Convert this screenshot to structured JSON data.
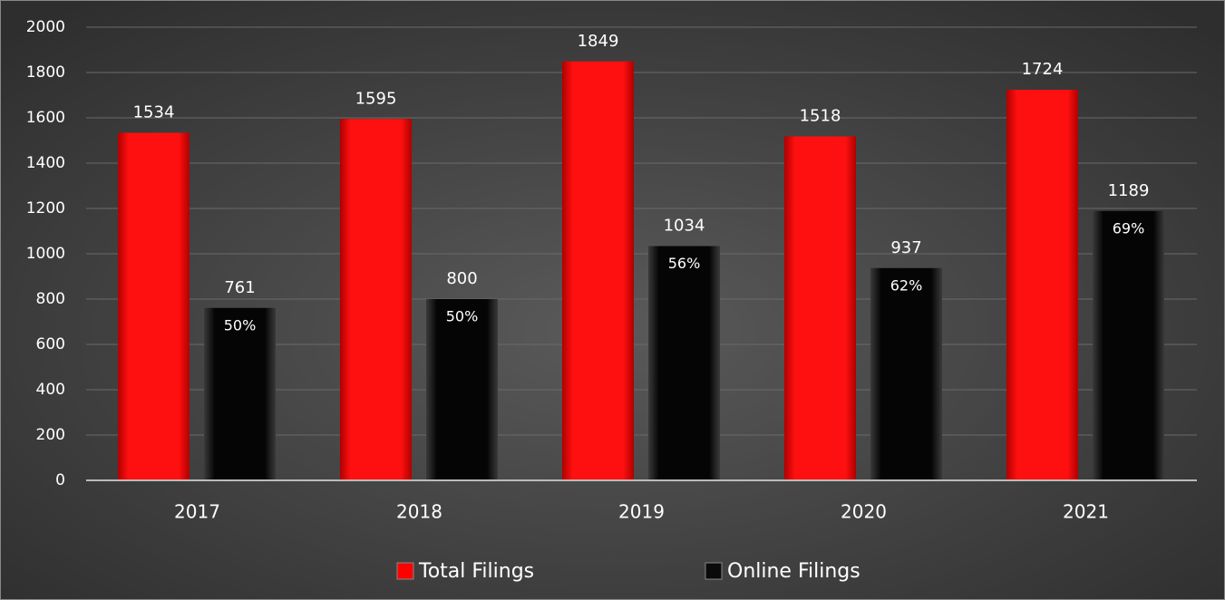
{
  "chart_data": {
    "type": "bar",
    "categories": [
      "2017",
      "2018",
      "2019",
      "2020",
      "2021"
    ],
    "series": [
      {
        "name": "Total Filings",
        "color": "#ff0000",
        "values": [
          1534,
          1595,
          1849,
          1518,
          1724
        ]
      },
      {
        "name": "Online Filings",
        "color": "#0a0a0a",
        "values": [
          761,
          800,
          1034,
          937,
          1189
        ],
        "inner_labels": [
          "50%",
          "50%",
          "56%",
          "62%",
          "69%"
        ]
      }
    ],
    "ylim": [
      0,
      2000
    ],
    "yticks": [
      0,
      200,
      400,
      600,
      800,
      1000,
      1200,
      1400,
      1600,
      1800,
      2000
    ],
    "grid": true,
    "legend": "bottom"
  }
}
